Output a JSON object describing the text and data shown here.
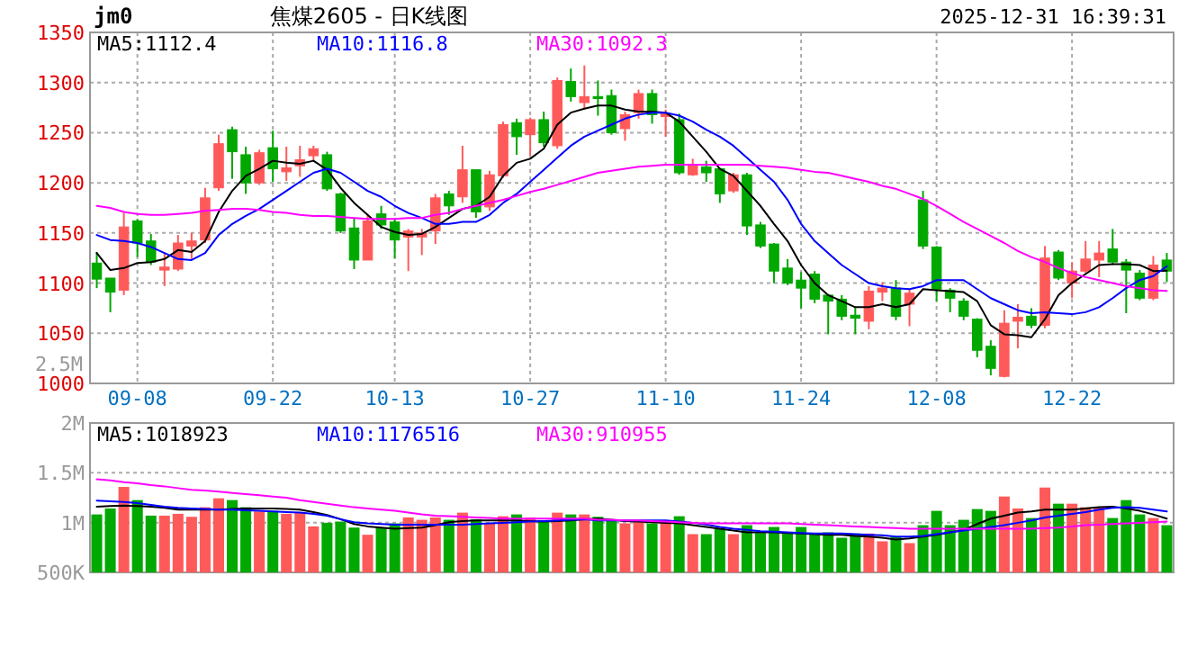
{
  "chart_data": [
    {
      "type": "candlestick",
      "title": "焦煤2605 - 日K线图",
      "annotations": [
        "jm0",
        "2025-12-31 16:39:31",
        "2.5M"
      ],
      "categories": [
        null,
        null,
        null,
        "09-08",
        null,
        null,
        null,
        null,
        null,
        null,
        null,
        null,
        null,
        "09-22",
        null,
        null,
        null,
        null,
        null,
        null,
        null,
        null,
        "10-13",
        null,
        null,
        null,
        null,
        null,
        null,
        null,
        null,
        null,
        "10-27",
        null,
        null,
        null,
        null,
        null,
        null,
        null,
        null,
        null,
        "11-10",
        null,
        null,
        null,
        null,
        null,
        null,
        null,
        null,
        null,
        "11-24",
        null,
        null,
        null,
        null,
        null,
        null,
        null,
        null,
        null,
        "12-08",
        null,
        null,
        null,
        null,
        null,
        null,
        null,
        null,
        null,
        "12-22",
        null,
        null,
        null,
        null,
        null,
        null,
        null
      ],
      "ohlc": [
        [
          1120,
          1131,
          1095,
          1104
        ],
        [
          1105,
          1105,
          1071,
          1091
        ],
        [
          1093,
          1170,
          1088,
          1156
        ],
        [
          1162,
          1164,
          1126,
          1140
        ],
        [
          1142,
          1149,
          1118,
          1121
        ],
        [
          1113,
          1130,
          1097,
          1116
        ],
        [
          1114,
          1148,
          1112,
          1140
        ],
        [
          1137,
          1150,
          1124,
          1142
        ],
        [
          1143,
          1195,
          1140,
          1185
        ],
        [
          1195,
          1248,
          1192,
          1239
        ],
        [
          1253,
          1256,
          1204,
          1231
        ],
        [
          1228,
          1236,
          1189,
          1200
        ],
        [
          1200,
          1233,
          1198,
          1230
        ],
        [
          1235,
          1252,
          1201,
          1214
        ],
        [
          1211,
          1236,
          1202,
          1215
        ],
        [
          1217,
          1237,
          1206,
          1223
        ],
        [
          1227,
          1237,
          1222,
          1234
        ],
        [
          1228,
          1231,
          1192,
          1194
        ],
        [
          1189,
          1190,
          1150,
          1152
        ],
        [
          1155,
          1165,
          1114,
          1123
        ],
        [
          1123,
          1168,
          1123,
          1162
        ],
        [
          1169,
          1177,
          1154,
          1158
        ],
        [
          1161,
          1164,
          1125,
          1143
        ],
        [
          1146,
          1154,
          1112,
          1152
        ],
        [
          1146,
          1154,
          1128,
          1150
        ],
        [
          1152,
          1189,
          1139,
          1185
        ],
        [
          1189,
          1192,
          1168,
          1177
        ],
        [
          1186,
          1237,
          1180,
          1213
        ],
        [
          1213,
          1213,
          1165,
          1171
        ],
        [
          1176,
          1212,
          1172,
          1208
        ],
        [
          1207,
          1261,
          1205,
          1258
        ],
        [
          1260,
          1264,
          1228,
          1246
        ],
        [
          1248,
          1265,
          1227,
          1263
        ],
        [
          1263,
          1271,
          1236,
          1240
        ],
        [
          1237,
          1305,
          1234,
          1302
        ],
        [
          1301,
          1314,
          1281,
          1286
        ],
        [
          1280,
          1317,
          1273,
          1286
        ],
        [
          1286,
          1302,
          1267,
          1284
        ],
        [
          1287,
          1293,
          1248,
          1250
        ],
        [
          1254,
          1271,
          1242,
          1268
        ],
        [
          1270,
          1293,
          1264,
          1289
        ],
        [
          1289,
          1293,
          1259,
          1268
        ],
        [
          1266,
          1273,
          1246,
          1269
        ],
        [
          1263,
          1269,
          1208,
          1210
        ],
        [
          1208,
          1224,
          1207,
          1218
        ],
        [
          1216,
          1222,
          1201,
          1210
        ],
        [
          1214,
          1215,
          1180,
          1189
        ],
        [
          1192,
          1210,
          1190,
          1208
        ],
        [
          1208,
          1210,
          1148,
          1157
        ],
        [
          1158,
          1161,
          1135,
          1137
        ],
        [
          1139,
          1140,
          1100,
          1112
        ],
        [
          1115,
          1124,
          1098,
          1100
        ],
        [
          1103,
          1111,
          1075,
          1095
        ],
        [
          1109,
          1112,
          1080,
          1084
        ],
        [
          1088,
          1089,
          1049,
          1082
        ],
        [
          1084,
          1088,
          1063,
          1067
        ],
        [
          1068,
          1076,
          1049,
          1065
        ],
        [
          1062,
          1097,
          1054,
          1092
        ],
        [
          1091,
          1101,
          1082,
          1095
        ],
        [
          1095,
          1103,
          1063,
          1067
        ],
        [
          1079,
          1094,
          1057,
          1090
        ],
        [
          1183,
          1192,
          1134,
          1137
        ],
        [
          1136,
          1137,
          1082,
          1094
        ],
        [
          1093,
          1095,
          1071,
          1085
        ],
        [
          1082,
          1085,
          1063,
          1067
        ],
        [
          1064,
          1065,
          1026,
          1033
        ],
        [
          1037,
          1043,
          1008,
          1015
        ],
        [
          1007,
          1073,
          1006,
          1060
        ],
        [
          1062,
          1079,
          1035,
          1066
        ],
        [
          1067,
          1075,
          1055,
          1058
        ],
        [
          1058,
          1137,
          1055,
          1125
        ],
        [
          1131,
          1133,
          1103,
          1105
        ],
        [
          1100,
          1121,
          1085,
          1112
        ],
        [
          1112,
          1142,
          1110,
          1124
        ],
        [
          1123,
          1142,
          1106,
          1130
        ],
        [
          1134,
          1154,
          1118,
          1121
        ],
        [
          1121,
          1124,
          1070,
          1113
        ],
        [
          1110,
          1113,
          1083,
          1085
        ],
        [
          1085,
          1127,
          1083,
          1118
        ],
        [
          1123,
          1130,
          1101,
          1112
        ]
      ],
      "colors": [
        "#00a800",
        "#00a800",
        "#ff5a5a",
        "#00a800",
        "#00a800",
        "#ff5a5a",
        "#ff5a5a",
        "#ff5a5a",
        "#ff5a5a",
        "#ff5a5a",
        "#00a800",
        "#00a800",
        "#ff5a5a",
        "#00a800",
        "#ff5a5a",
        "#ff5a5a",
        "#ff5a5a",
        "#00a800",
        "#00a800",
        "#00a800",
        "#ff5a5a",
        "#00a800",
        "#00a800",
        "#ff5a5a",
        "#ff5a5a",
        "#ff5a5a",
        "#00a800",
        "#ff5a5a",
        "#00a800",
        "#ff5a5a",
        "#ff5a5a",
        "#00a800",
        "#ff5a5a",
        "#00a800",
        "#ff5a5a",
        "#00a800",
        "#ff5a5a",
        "#00a800",
        "#00a800",
        "#ff5a5a",
        "#ff5a5a",
        "#00a800",
        "#ff5a5a",
        "#00a800",
        "#ff5a5a",
        "#00a800",
        "#00a800",
        "#ff5a5a",
        "#00a800",
        "#00a800",
        "#00a800",
        "#00a800",
        "#00a800",
        "#00a800",
        "#00a800",
        "#00a800",
        "#00a800",
        "#ff5a5a",
        "#ff5a5a",
        "#00a800",
        "#ff5a5a",
        "#00a800",
        "#00a800",
        "#00a800",
        "#00a800",
        "#00a800",
        "#00a800",
        "#ff5a5a",
        "#ff5a5a",
        "#00a800",
        "#ff5a5a",
        "#00a800",
        "#ff5a5a",
        "#ff5a5a",
        "#ff5a5a",
        "#00a800",
        "#00a800",
        "#00a800",
        "#ff5a5a",
        "#00a800"
      ],
      "series": [
        {
          "type": "line",
          "name": "MA5:1112.4",
          "color": "#000000",
          "values": [
            1130,
            1113,
            1115,
            1120,
            1121,
            1124,
            1133,
            1131,
            1142,
            1171,
            1192,
            1207,
            1214,
            1222,
            1220,
            1219,
            1222,
            1213,
            1195,
            1180,
            1168,
            1156,
            1151,
            1148,
            1149,
            1156,
            1165,
            1174,
            1177,
            1186,
            1207,
            1220,
            1224,
            1234,
            1258,
            1270,
            1274,
            1277,
            1277,
            1273,
            1271,
            1271,
            1270,
            1261,
            1246,
            1231,
            1214,
            1207,
            1192,
            1177,
            1159,
            1142,
            1118,
            1100,
            1088,
            1082,
            1076,
            1076,
            1079,
            1076,
            1079,
            1094,
            1093,
            1092,
            1091,
            1082,
            1058,
            1049,
            1048,
            1046,
            1064,
            1088,
            1100,
            1109,
            1118,
            1119,
            1119,
            1118,
            1112,
            1112.4
          ]
        },
        {
          "type": "line",
          "name": "MA10:1116.8",
          "color": "#0000ff",
          "values": [
            1148,
            1143,
            1142,
            1140,
            1136,
            1130,
            1124,
            1123,
            1130,
            1148,
            1159,
            1167,
            1174,
            1183,
            1192,
            1201,
            1210,
            1214,
            1210,
            1201,
            1192,
            1186,
            1177,
            1170,
            1165,
            1159,
            1159,
            1161,
            1161,
            1168,
            1180,
            1189,
            1201,
            1213,
            1225,
            1237,
            1246,
            1252,
            1258,
            1264,
            1268,
            1270,
            1270,
            1267,
            1261,
            1253,
            1246,
            1237,
            1225,
            1213,
            1201,
            1183,
            1159,
            1142,
            1130,
            1118,
            1109,
            1100,
            1097,
            1095,
            1094,
            1097,
            1103,
            1103,
            1103,
            1094,
            1085,
            1079,
            1073,
            1070,
            1071,
            1070,
            1069,
            1071,
            1076,
            1085,
            1095,
            1103,
            1107,
            1116.8
          ]
        },
        {
          "type": "line",
          "name": "MA30:1092.3",
          "color": "#ff00ff",
          "values": [
            1177,
            1175,
            1171,
            1169,
            1168,
            1168,
            1169,
            1170,
            1172,
            1173,
            1174,
            1174,
            1173,
            1171,
            1170,
            1168,
            1167,
            1167,
            1166,
            1165,
            1164,
            1164,
            1164,
            1165,
            1165,
            1168,
            1170,
            1174,
            1177,
            1180,
            1183,
            1187,
            1191,
            1194,
            1198,
            1202,
            1206,
            1210,
            1212,
            1214,
            1216,
            1217,
            1218,
            1218,
            1218,
            1218,
            1218,
            1218,
            1218,
            1217,
            1216,
            1215,
            1213,
            1211,
            1210,
            1207,
            1204,
            1201,
            1197,
            1194,
            1189,
            1184,
            1177,
            1169,
            1161,
            1154,
            1147,
            1140,
            1132,
            1126,
            1121,
            1115,
            1110,
            1106,
            1103,
            1100,
            1097,
            1095,
            1093,
            1092.3
          ]
        }
      ],
      "ylim": [
        1000,
        1350
      ],
      "yticks": [
        1000,
        1050,
        1100,
        1150,
        1200,
        1250,
        1300,
        1350
      ],
      "grid": true,
      "legend": "top left"
    },
    {
      "type": "bar",
      "tick_labels": "y",
      "categories": [
        null,
        null,
        null,
        null,
        null,
        null,
        null,
        null,
        null,
        null,
        null,
        null,
        null,
        null,
        null,
        null,
        null,
        null,
        null,
        null,
        null,
        null,
        null,
        null,
        null,
        null,
        null,
        null,
        null,
        null,
        null,
        null,
        null,
        null,
        null,
        null,
        null,
        null,
        null,
        null,
        null,
        null,
        null,
        null,
        null,
        null,
        null,
        null,
        null,
        null,
        null,
        null,
        null,
        null,
        null,
        null,
        null,
        null,
        null,
        null,
        null,
        null,
        null,
        null,
        null,
        null,
        null,
        null,
        null,
        null,
        null,
        null,
        null,
        null,
        null,
        null,
        null,
        null,
        null,
        null
      ],
      "values": [
        1082000,
        1142000,
        1358000,
        1226000,
        1070000,
        1070000,
        1088000,
        1058000,
        1154000,
        1244000,
        1226000,
        1154000,
        1112000,
        1118000,
        1088000,
        1100000,
        962000,
        998000,
        1010000,
        950000,
        878000,
        950000,
        992000,
        1052000,
        1028000,
        1052000,
        1028000,
        1100000,
        1034000,
        992000,
        1064000,
        1082000,
        1052000,
        1022000,
        1100000,
        1082000,
        1082000,
        1058000,
        1028000,
        992000,
        1022000,
        992000,
        1010000,
        1064000,
        884000,
        884000,
        938000,
        884000,
        974000,
        896000,
        956000,
        890000,
        956000,
        890000,
        902000,
        848000,
        890000,
        890000,
        812000,
        854000,
        794000,
        974000,
        1118000,
        974000,
        1028000,
        1136000,
        1118000,
        1262000,
        1142000,
        1046000,
        1352000,
        1190000,
        1190000,
        1154000,
        1160000,
        1046000,
        1226000,
        1082000,
        1046000,
        974000
      ],
      "colors": [
        "#00a800",
        "#00a800",
        "#ff5a5a",
        "#00a800",
        "#00a800",
        "#ff5a5a",
        "#ff5a5a",
        "#ff5a5a",
        "#ff5a5a",
        "#ff5a5a",
        "#00a800",
        "#00a800",
        "#ff5a5a",
        "#00a800",
        "#ff5a5a",
        "#ff5a5a",
        "#ff5a5a",
        "#00a800",
        "#00a800",
        "#00a800",
        "#ff5a5a",
        "#00a800",
        "#00a800",
        "#ff5a5a",
        "#ff5a5a",
        "#ff5a5a",
        "#00a800",
        "#ff5a5a",
        "#00a800",
        "#ff5a5a",
        "#ff5a5a",
        "#00a800",
        "#ff5a5a",
        "#00a800",
        "#ff5a5a",
        "#00a800",
        "#ff5a5a",
        "#00a800",
        "#00a800",
        "#ff5a5a",
        "#ff5a5a",
        "#00a800",
        "#ff5a5a",
        "#00a800",
        "#ff5a5a",
        "#00a800",
        "#00a800",
        "#ff5a5a",
        "#00a800",
        "#00a800",
        "#00a800",
        "#00a800",
        "#00a800",
        "#00a800",
        "#00a800",
        "#00a800",
        "#00a800",
        "#ff5a5a",
        "#ff5a5a",
        "#00a800",
        "#ff5a5a",
        "#00a800",
        "#00a800",
        "#00a800",
        "#00a800",
        "#00a800",
        "#00a800",
        "#ff5a5a",
        "#ff5a5a",
        "#00a800",
        "#ff5a5a",
        "#00a800",
        "#ff5a5a",
        "#ff5a5a",
        "#ff5a5a",
        "#00a800",
        "#00a800",
        "#00a800",
        "#ff5a5a",
        "#00a800"
      ],
      "series": [
        {
          "type": "line",
          "name": "MA5:1018923",
          "color": "#000000",
          "values": [
            1160000,
            1166000,
            1172000,
            1166000,
            1160000,
            1148000,
            1130000,
            1130000,
            1130000,
            1130000,
            1136000,
            1142000,
            1142000,
            1142000,
            1136000,
            1130000,
            1106000,
            1076000,
            1034000,
            986000,
            962000,
            950000,
            938000,
            944000,
            950000,
            974000,
            1004000,
            1016000,
            1022000,
            1022000,
            1022000,
            1022000,
            1016000,
            1010000,
            1016000,
            1022000,
            1034000,
            1040000,
            1028000,
            1016000,
            1010000,
            1004000,
            998000,
            992000,
            974000,
            956000,
            938000,
            920000,
            902000,
            902000,
            902000,
            896000,
            890000,
            884000,
            878000,
            878000,
            866000,
            860000,
            848000,
            830000,
            842000,
            860000,
            878000,
            902000,
            926000,
            986000,
            1040000,
            1070000,
            1100000,
            1112000,
            1130000,
            1130000,
            1130000,
            1142000,
            1154000,
            1160000,
            1142000,
            1118000,
            1082000,
            1040000
          ]
        },
        {
          "type": "line",
          "name": "MA10:1176516",
          "color": "#0000ff",
          "values": [
            1220000,
            1214000,
            1208000,
            1196000,
            1178000,
            1160000,
            1148000,
            1142000,
            1136000,
            1130000,
            1130000,
            1124000,
            1118000,
            1112000,
            1106000,
            1100000,
            1088000,
            1070000,
            1034000,
            1004000,
            992000,
            986000,
            980000,
            980000,
            980000,
            980000,
            980000,
            980000,
            986000,
            992000,
            998000,
            1004000,
            1010000,
            1016000,
            1022000,
            1028000,
            1034000,
            1022000,
            1022000,
            1022000,
            1022000,
            1022000,
            1022000,
            1010000,
            998000,
            980000,
            956000,
            938000,
            926000,
            914000,
            908000,
            902000,
            896000,
            890000,
            890000,
            890000,
            884000,
            878000,
            872000,
            860000,
            860000,
            866000,
            884000,
            902000,
            920000,
            938000,
            956000,
            974000,
            998000,
            1022000,
            1052000,
            1070000,
            1088000,
            1106000,
            1130000,
            1148000,
            1154000,
            1148000,
            1130000,
            1112000
          ]
        },
        {
          "type": "line",
          "name": "MA30:910955",
          "color": "#ff00ff",
          "values": [
            1436000,
            1424000,
            1406000,
            1394000,
            1376000,
            1364000,
            1346000,
            1328000,
            1322000,
            1310000,
            1298000,
            1286000,
            1274000,
            1262000,
            1250000,
            1226000,
            1208000,
            1190000,
            1172000,
            1154000,
            1142000,
            1130000,
            1118000,
            1100000,
            1082000,
            1070000,
            1064000,
            1058000,
            1052000,
            1046000,
            1040000,
            1040000,
            1040000,
            1040000,
            1040000,
            1040000,
            1040000,
            1028000,
            1028000,
            1022000,
            1022000,
            1016000,
            1010000,
            1004000,
            998000,
            992000,
            992000,
            992000,
            992000,
            992000,
            992000,
            992000,
            986000,
            980000,
            974000,
            968000,
            962000,
            956000,
            950000,
            944000,
            938000,
            938000,
            938000,
            938000,
            938000,
            938000,
            938000,
            938000,
            938000,
            938000,
            944000,
            950000,
            962000,
            974000,
            980000,
            986000,
            992000,
            998000,
            1004000,
            1010000
          ]
        }
      ],
      "ylim": [
        500000,
        2000000
      ],
      "yticks": [
        {
          "value": 500000,
          "label": "500K"
        },
        {
          "value": 1000000,
          "label": "1M"
        },
        {
          "value": 1500000,
          "label": "1.5M"
        },
        {
          "value": 2000000,
          "label": "2M"
        }
      ],
      "grid": "y",
      "legend": "top left"
    }
  ]
}
